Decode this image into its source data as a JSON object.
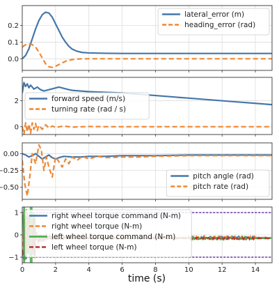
{
  "colors": {
    "blue": "#4477aa",
    "orange": "#ee8833",
    "green": "#44aa44",
    "red": "#bb3333",
    "purple": "#8866bb",
    "grid": "#dddddd"
  },
  "chart_data": {
    "type": "line",
    "xlabel": "time (s)",
    "xlim": [
      0,
      15
    ],
    "xticks": [
      "0",
      "2",
      "4",
      "6",
      "8",
      "10",
      "12",
      "14"
    ],
    "subplots": [
      {
        "ylim": [
          -0.07,
          0.32
        ],
        "yticks": [
          0.0,
          0.1,
          0.2
        ],
        "ytick_labels": [
          "0.0",
          "0.1",
          "0.2"
        ],
        "legend": "top-right",
        "series": [
          {
            "name": "lateral_error (m)",
            "style": "solid",
            "color": "blue",
            "x": [
              0,
              0.2,
              0.4,
              0.6,
              0.8,
              1.0,
              1.2,
              1.4,
              1.6,
              1.8,
              2.0,
              2.2,
              2.4,
              2.6,
              2.8,
              3.0,
              3.3,
              3.6,
              4.0,
              5,
              6,
              8,
              10,
              12,
              15
            ],
            "y": [
              0.0,
              0.02,
              0.06,
              0.12,
              0.18,
              0.23,
              0.265,
              0.28,
              0.275,
              0.25,
              0.21,
              0.17,
              0.13,
              0.1,
              0.075,
              0.058,
              0.045,
              0.038,
              0.035,
              0.033,
              0.032,
              0.032,
              0.032,
              0.032,
              0.032
            ]
          },
          {
            "name": "heading_error (rad)",
            "style": "dashed",
            "color": "orange",
            "x": [
              0,
              0.2,
              0.4,
              0.6,
              0.8,
              1.0,
              1.2,
              1.4,
              1.6,
              1.8,
              2.0,
              2.2,
              2.4,
              2.6,
              2.8,
              3.0,
              3.3,
              3.6,
              4.0,
              5,
              6,
              8,
              10,
              12,
              15
            ],
            "y": [
              0.07,
              0.085,
              0.09,
              0.085,
              0.07,
              0.04,
              0.005,
              -0.03,
              -0.048,
              -0.052,
              -0.045,
              -0.035,
              -0.025,
              -0.015,
              -0.009,
              -0.005,
              -0.002,
              0.0,
              0.0,
              0.0,
              0.0,
              0.0,
              0.0,
              0.0,
              0.0
            ]
          }
        ]
      },
      {
        "ylim": [
          -0.6,
          3.8
        ],
        "yticks": [
          0,
          2
        ],
        "ytick_labels": [
          "0",
          "2"
        ],
        "legend": "center-left",
        "series": [
          {
            "name": "forward speed (m/s)",
            "style": "solid",
            "color": "blue",
            "x": [
              0,
              0.1,
              0.2,
              0.3,
              0.4,
              0.5,
              0.7,
              0.9,
              1.1,
              1.3,
              1.6,
              1.9,
              2.2,
              2.5,
              2.8,
              3.0,
              3.5,
              4,
              5,
              6,
              7,
              8,
              9,
              10,
              11,
              12,
              13,
              14,
              15
            ],
            "y": [
              2.6,
              3.4,
              3.1,
              3.3,
              3.0,
              3.2,
              2.9,
              3.05,
              2.85,
              2.75,
              2.85,
              2.95,
              3.05,
              2.95,
              2.85,
              2.8,
              2.75,
              2.7,
              2.65,
              2.6,
              2.5,
              2.4,
              2.3,
              2.2,
              2.1,
              2.0,
              1.9,
              1.8,
              1.7
            ]
          },
          {
            "name": "turning rate (rad / s)",
            "style": "dashed",
            "color": "orange",
            "x": [
              0,
              0.1,
              0.2,
              0.3,
              0.4,
              0.5,
              0.6,
              0.7,
              0.8,
              0.9,
              1.0,
              1.2,
              1.4,
              1.6,
              1.8,
              2.0,
              2.5,
              3,
              4,
              5,
              6,
              8,
              10,
              12,
              15
            ],
            "y": [
              0,
              -0.6,
              0.3,
              -0.4,
              0.2,
              -0.5,
              0.3,
              -0.2,
              0.25,
              -0.3,
              0.1,
              -0.2,
              0.15,
              -0.1,
              0.05,
              -0.05,
              0.05,
              -0.03,
              0.02,
              0,
              0,
              0,
              0,
              0,
              0
            ]
          }
        ]
      },
      {
        "ylim": [
          -0.68,
          0.16
        ],
        "yticks": [
          0.0,
          -0.25,
          -0.5
        ],
        "ytick_labels": [
          "0.00",
          "−0.25",
          "−0.50"
        ],
        "legend": "bottom-right",
        "series": [
          {
            "name": "pitch angle (rad)",
            "style": "solid",
            "color": "blue",
            "x": [
              0,
              0.2,
              0.4,
              0.6,
              0.8,
              1.0,
              1.2,
              1.4,
              1.6,
              1.8,
              2.0,
              2.2,
              2.5,
              3.0,
              3.5,
              4,
              5,
              6,
              8,
              10,
              12,
              15
            ],
            "y": [
              0,
              -0.02,
              -0.05,
              -0.03,
              0.0,
              -0.04,
              -0.08,
              -0.05,
              -0.02,
              -0.06,
              -0.08,
              -0.06,
              -0.04,
              -0.05,
              -0.05,
              -0.04,
              -0.04,
              -0.03,
              -0.03,
              -0.02,
              -0.02,
              -0.02
            ]
          },
          {
            "name": "pitch rate (rad)",
            "style": "dashed",
            "color": "orange",
            "x": [
              0,
              0.15,
              0.3,
              0.45,
              0.6,
              0.8,
              1.0,
              1.15,
              1.3,
              1.45,
              1.6,
              1.8,
              2.0,
              2.2,
              2.4,
              2.6,
              2.8,
              3.0,
              3.3,
              3.6,
              4,
              4.5,
              5,
              6,
              7,
              8,
              10,
              12,
              15
            ],
            "y": [
              -0.1,
              -0.45,
              -0.63,
              -0.35,
              0.0,
              -0.15,
              0.13,
              0.05,
              -0.25,
              -0.05,
              -0.2,
              -0.35,
              -0.05,
              -0.12,
              -0.2,
              -0.08,
              -0.15,
              -0.05,
              -0.1,
              -0.04,
              -0.08,
              -0.04,
              -0.06,
              -0.05,
              -0.05,
              -0.04,
              -0.03,
              -0.03,
              -0.03
            ]
          }
        ]
      },
      {
        "ylim": [
          -1.25,
          1.25
        ],
        "yticks": [
          1,
          0,
          -1
        ],
        "ytick_labels": [
          "1",
          "0",
          "−1"
        ],
        "legend": "upper-left",
        "series": [
          {
            "name": "right wheel torque command (N-m)",
            "style": "solid",
            "color": "blue"
          },
          {
            "name": "right wheel torque (N-m)",
            "style": "dashed",
            "color": "orange"
          },
          {
            "name": "left wheel torque command (N-m)",
            "style": "solid",
            "color": "green"
          },
          {
            "name": "left wheel torque (N-m)",
            "style": "dashed",
            "color": "red"
          }
        ],
        "limit_lines": {
          "color": "purple",
          "style": "dotted",
          "values": [
            1,
            -1
          ]
        }
      }
    ]
  }
}
